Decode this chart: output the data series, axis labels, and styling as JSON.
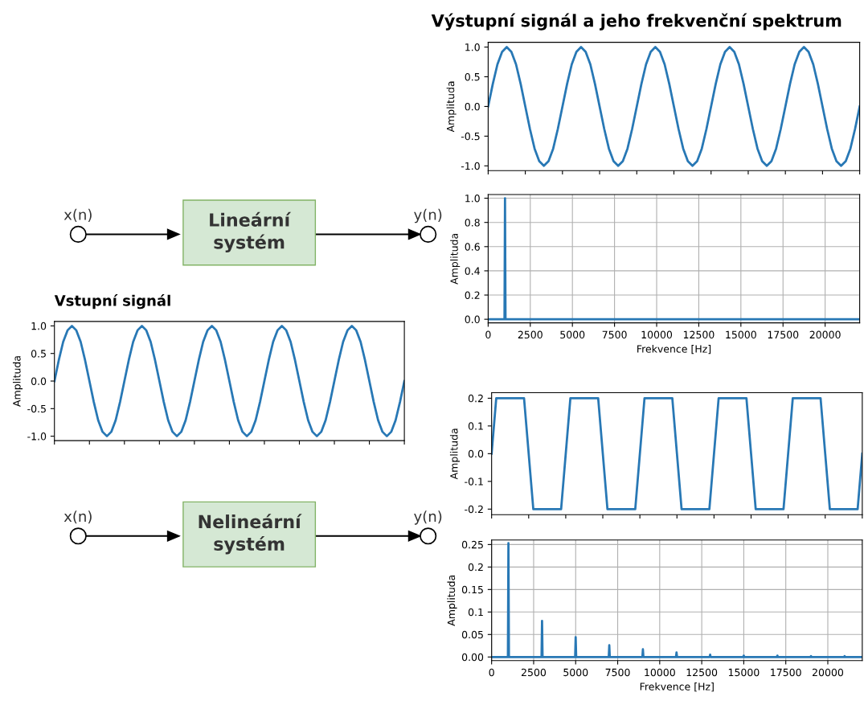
{
  "chart_data": [
    {
      "type": "other",
      "annotations": [
        "x(n)",
        "Lineární\nsystém",
        "y(n)"
      ]
    },
    {
      "type": "line",
      "title": "Výstupní signál a jeho frekvenční spektrum",
      "ylabel": "Amplituda",
      "color": "#2878b5",
      "tick_labels": "y",
      "ylim": [
        -1.08,
        1.08
      ],
      "yticks": [
        {
          "value": -1,
          "label": "-1.0"
        },
        -0.5,
        {
          "value": 0,
          "label": "0.0"
        },
        0.5,
        {
          "value": 1,
          "label": "1.0"
        }
      ],
      "grid": false,
      "categories": [
        null,
        null,
        null,
        null,
        null,
        null,
        null,
        null,
        null,
        null,
        null,
        null,
        null,
        null,
        null,
        null,
        null,
        null,
        null,
        null,
        null,
        null,
        null,
        null,
        null,
        null,
        null,
        null,
        null,
        null,
        null,
        null,
        null,
        null,
        null,
        null,
        null,
        null,
        null,
        null,
        null,
        null,
        null,
        null,
        null,
        null,
        null,
        null,
        null,
        null,
        null,
        null,
        null,
        null,
        null,
        null,
        null,
        null,
        null,
        null,
        null,
        null,
        null,
        null,
        null,
        null,
        null,
        null,
        null,
        null,
        null,
        null,
        null,
        null,
        null,
        null,
        null,
        null,
        null,
        null,
        null
      ],
      "values": [
        0,
        0.38,
        0.71,
        0.92,
        1,
        0.92,
        0.71,
        0.38,
        0,
        -0.38,
        -0.71,
        -0.92,
        -1,
        -0.92,
        -0.71,
        -0.38,
        0,
        0.38,
        0.71,
        0.92,
        1,
        0.92,
        0.71,
        0.38,
        0,
        -0.38,
        -0.71,
        -0.92,
        -1,
        -0.92,
        -0.71,
        -0.38,
        0,
        0.38,
        0.71,
        0.92,
        1,
        0.92,
        0.71,
        0.38,
        0,
        -0.38,
        -0.71,
        -0.92,
        -1,
        -0.92,
        -0.71,
        -0.38,
        0,
        0.38,
        0.71,
        0.92,
        1,
        0.92,
        0.71,
        0.38,
        0,
        -0.38,
        -0.71,
        -0.92,
        -1,
        -0.92,
        -0.71,
        -0.38,
        0,
        0.38,
        0.71,
        0.92,
        1,
        0.92,
        0.71,
        0.38,
        0,
        -0.38,
        -0.71,
        -0.92,
        -1,
        -0.92,
        -0.71,
        -0.38,
        0
      ]
    },
    {
      "type": "line",
      "title": "Vstupní signál",
      "ylabel": "Amplituda",
      "color": "#2878b5",
      "tick_labels": "y",
      "ylim": [
        -1.08,
        1.08
      ],
      "yticks": [
        {
          "value": -1,
          "label": "-1.0"
        },
        -0.5,
        {
          "value": 0,
          "label": "0.0"
        },
        0.5,
        {
          "value": 1,
          "label": "1.0"
        }
      ],
      "grid": false,
      "categories": [
        null,
        null,
        null,
        null,
        null,
        null,
        null,
        null,
        null,
        null,
        null,
        null,
        null,
        null,
        null,
        null,
        null,
        null,
        null,
        null,
        null,
        null,
        null,
        null,
        null,
        null,
        null,
        null,
        null,
        null,
        null,
        null,
        null,
        null,
        null,
        null,
        null,
        null,
        null,
        null,
        null,
        null,
        null,
        null,
        null,
        null,
        null,
        null,
        null,
        null,
        null,
        null,
        null,
        null,
        null,
        null,
        null,
        null,
        null,
        null,
        null,
        null,
        null,
        null,
        null,
        null,
        null,
        null,
        null,
        null,
        null,
        null,
        null,
        null,
        null,
        null,
        null,
        null,
        null,
        null,
        null
      ],
      "values": [
        0,
        0.38,
        0.71,
        0.92,
        1,
        0.92,
        0.71,
        0.38,
        0,
        -0.38,
        -0.71,
        -0.92,
        -1,
        -0.92,
        -0.71,
        -0.38,
        0,
        0.38,
        0.71,
        0.92,
        1,
        0.92,
        0.71,
        0.38,
        0,
        -0.38,
        -0.71,
        -0.92,
        -1,
        -0.92,
        -0.71,
        -0.38,
        0,
        0.38,
        0.71,
        0.92,
        1,
        0.92,
        0.71,
        0.38,
        0,
        -0.38,
        -0.71,
        -0.92,
        -1,
        -0.92,
        -0.71,
        -0.38,
        0,
        0.38,
        0.71,
        0.92,
        1,
        0.92,
        0.71,
        0.38,
        0,
        -0.38,
        -0.71,
        -0.92,
        -1,
        -0.92,
        -0.71,
        -0.38,
        0,
        0.38,
        0.71,
        0.92,
        1,
        0.92,
        0.71,
        0.38,
        0,
        -0.38,
        -0.71,
        -0.92,
        -1,
        -0.92,
        -0.71,
        -0.38,
        0
      ]
    },
    {
      "type": "line",
      "xlabel": "Frekvence [Hz]",
      "ylabel": "Amplituda",
      "color": "#2878b5",
      "grid": true,
      "xlim": [
        0,
        22050
      ],
      "xticks": [
        0,
        2500,
        5000,
        7500,
        10000,
        12500,
        15000,
        17500,
        20000
      ],
      "ylim": [
        -0.03,
        1.03
      ],
      "yticks": [
        {
          "value": 0,
          "label": "0.0"
        },
        0.2,
        0.4,
        0.6,
        0.8,
        {
          "value": 1,
          "label": "1.0"
        }
      ],
      "x": [
        0,
        970,
        1000,
        1030,
        22050
      ],
      "values": [
        0,
        0,
        1.0,
        0,
        0
      ]
    },
    {
      "type": "other",
      "annotations": [
        "x(n)",
        "Nelineární\nsystém",
        "y(n)"
      ]
    },
    {
      "type": "line",
      "ylabel": "Amplituda",
      "color": "#2878b5",
      "tick_labels": "y",
      "ylim": [
        -0.22,
        0.22
      ],
      "yticks": [
        -0.2,
        -0.1,
        {
          "value": 0,
          "label": "0.0"
        },
        0.1,
        0.2
      ],
      "grid": false,
      "categories": [
        null,
        null,
        null,
        null,
        null,
        null,
        null,
        null,
        null,
        null,
        null,
        null,
        null,
        null,
        null,
        null,
        null,
        null,
        null,
        null,
        null,
        null,
        null,
        null,
        null,
        null,
        null,
        null,
        null,
        null,
        null,
        null,
        null,
        null,
        null,
        null,
        null,
        null,
        null,
        null,
        null,
        null,
        null,
        null,
        null,
        null,
        null,
        null,
        null,
        null,
        null,
        null,
        null,
        null,
        null,
        null,
        null,
        null,
        null,
        null,
        null,
        null,
        null,
        null,
        null,
        null,
        null,
        null,
        null,
        null,
        null,
        null,
        null,
        null,
        null,
        null,
        null,
        null,
        null,
        null,
        null
      ],
      "values": [
        0,
        0.2,
        0.2,
        0.2,
        0.2,
        0.2,
        0.2,
        0.2,
        0,
        -0.2,
        -0.2,
        -0.2,
        -0.2,
        -0.2,
        -0.2,
        -0.2,
        0,
        0.2,
        0.2,
        0.2,
        0.2,
        0.2,
        0.2,
        0.2,
        0,
        -0.2,
        -0.2,
        -0.2,
        -0.2,
        -0.2,
        -0.2,
        -0.2,
        0,
        0.2,
        0.2,
        0.2,
        0.2,
        0.2,
        0.2,
        0.2,
        0,
        -0.2,
        -0.2,
        -0.2,
        -0.2,
        -0.2,
        -0.2,
        -0.2,
        0,
        0.2,
        0.2,
        0.2,
        0.2,
        0.2,
        0.2,
        0.2,
        0,
        -0.2,
        -0.2,
        -0.2,
        -0.2,
        -0.2,
        -0.2,
        -0.2,
        0,
        0.2,
        0.2,
        0.2,
        0.2,
        0.2,
        0.2,
        0.2,
        0,
        -0.2,
        -0.2,
        -0.2,
        -0.2,
        -0.2,
        -0.2,
        -0.2,
        0
      ]
    },
    {
      "type": "line",
      "xlabel": "Frekvence [Hz]",
      "ylabel": "Amplituda",
      "color": "#2878b5",
      "grid": true,
      "xlim": [
        0,
        22050
      ],
      "xticks": [
        0,
        2500,
        5000,
        7500,
        10000,
        12500,
        15000,
        17500,
        20000
      ],
      "ylim": [
        -0.008,
        0.26
      ],
      "yticks": [
        {
          "value": 0,
          "label": "0.00"
        },
        0.05,
        0.1,
        0.15,
        0.2,
        0.25
      ],
      "x": [
        0,
        970,
        1000,
        1030,
        2970,
        3000,
        3030,
        4970,
        5000,
        5030,
        6970,
        7000,
        7030,
        8970,
        9000,
        9030,
        10970,
        11000,
        11030,
        12970,
        13000,
        13030,
        14970,
        15000,
        15030,
        16970,
        17000,
        17030,
        18970,
        19000,
        19030,
        20970,
        21000,
        21030,
        22050
      ],
      "values": [
        0,
        0,
        0.253,
        0,
        0,
        0.08,
        0,
        0,
        0.044,
        0,
        0,
        0.026,
        0,
        0,
        0.017,
        0,
        0,
        0.01,
        0,
        0,
        0.005,
        0,
        0,
        0.003,
        0,
        0,
        0.003,
        0,
        0,
        0.002,
        0,
        0,
        0.002,
        0,
        0
      ]
    }
  ]
}
